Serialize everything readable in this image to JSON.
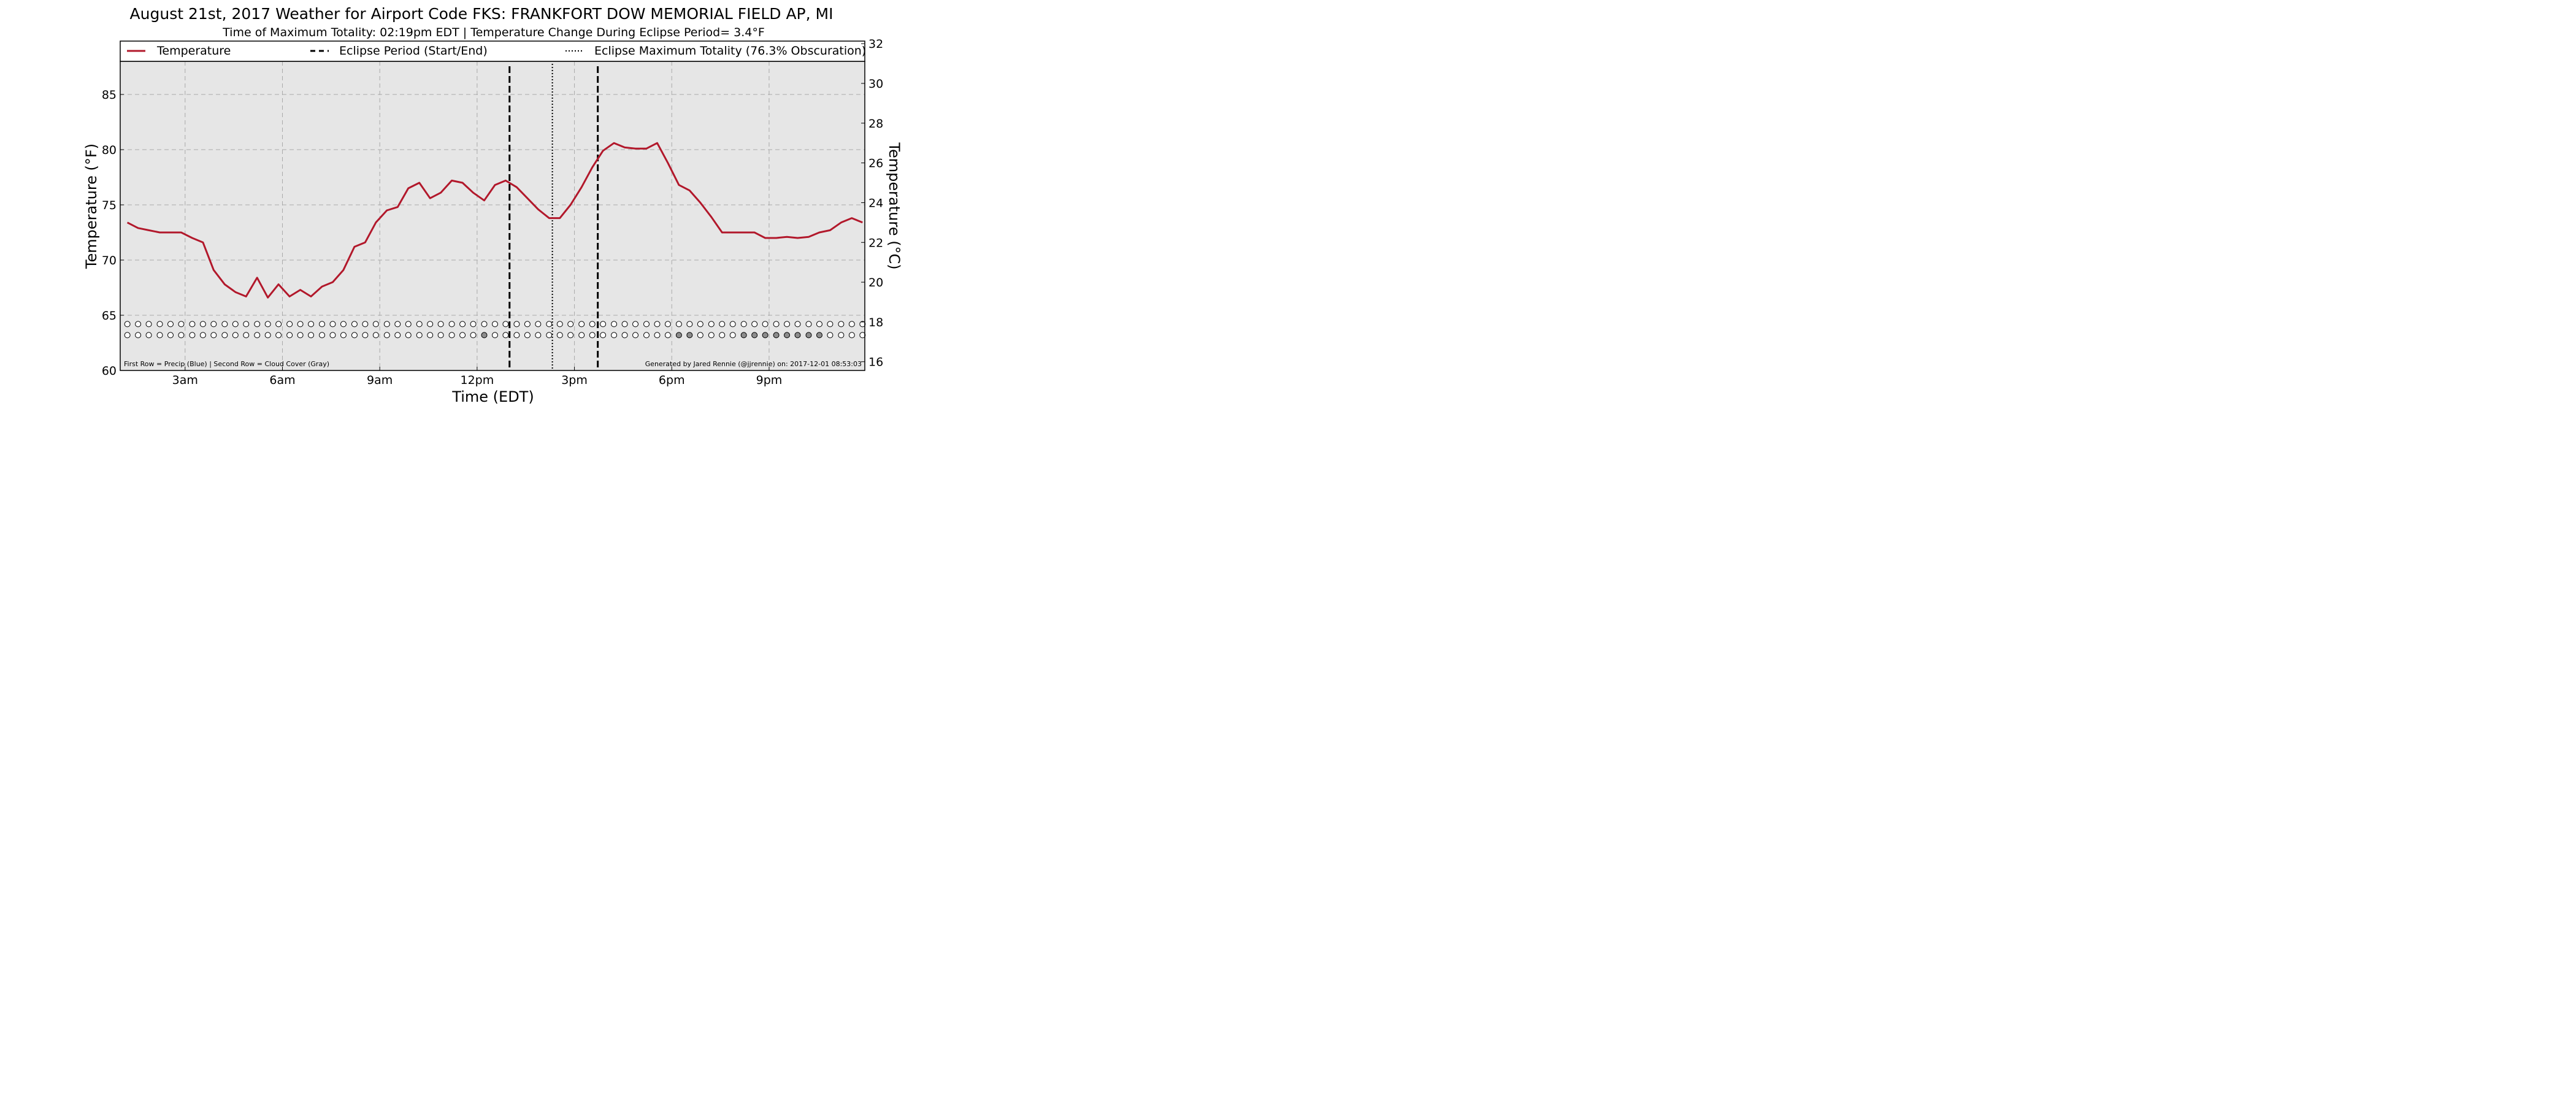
{
  "chart_data": {
    "type": "line",
    "title": "August 21st, 2017 Weather for Airport Code FKS: FRANKFORT DOW MEMORIAL FIELD AP, MI",
    "subtitle": "Time of Maximum Totality: 02:19pm EDT | Temperature Change During Eclipse Period= 3.4°F",
    "xlabel": "Time (EDT)",
    "ylabel": "Temperature (°F)",
    "ylabel_right": "Temperature (°C)",
    "ylim": [
      60,
      88
    ],
    "ylim_right": [
      15.56,
      31.11
    ],
    "xlim": [
      1.0,
      23.95
    ],
    "y_ticks": [
      "60",
      "65",
      "70",
      "75",
      "80",
      "85"
    ],
    "y_right_ticks": [
      "16",
      "18",
      "20",
      "22",
      "24",
      "26",
      "28",
      "30",
      "32"
    ],
    "x_ticks": [
      {
        "x": 3,
        "label": "3am"
      },
      {
        "x": 6,
        "label": "6am"
      },
      {
        "x": 9,
        "label": "9am"
      },
      {
        "x": 12,
        "label": "12pm"
      },
      {
        "x": 15,
        "label": "3pm"
      },
      {
        "x": 18,
        "label": "6pm"
      },
      {
        "x": 21,
        "label": "9pm"
      }
    ],
    "grid": true,
    "legend_position": "top",
    "legend": {
      "temperature": "Temperature",
      "eclipse_period": "Eclipse Period (Start/End)",
      "eclipse_max": "Eclipse Maximum Totality (76.3% Obscuration)"
    },
    "series": [
      {
        "name": "Temperature",
        "color": "#b2182b",
        "x": [
          1.22,
          1.55,
          1.88,
          2.22,
          2.55,
          2.88,
          3.22,
          3.55,
          3.88,
          4.22,
          4.55,
          4.88,
          5.22,
          5.55,
          5.88,
          6.22,
          6.55,
          6.88,
          7.22,
          7.55,
          7.88,
          8.22,
          8.55,
          8.88,
          9.22,
          9.55,
          9.88,
          10.22,
          10.55,
          10.88,
          11.22,
          11.55,
          11.88,
          12.22,
          12.55,
          12.88,
          13.22,
          13.55,
          13.88,
          14.22,
          14.55,
          14.88,
          15.22,
          15.55,
          15.88,
          16.22,
          16.55,
          16.88,
          17.22,
          17.55,
          17.88,
          18.22,
          18.55,
          18.88,
          19.22,
          19.55,
          19.88,
          20.22,
          20.55,
          20.88,
          21.22,
          21.55,
          21.88,
          22.22,
          22.55,
          22.88,
          23.22,
          23.55,
          23.88
        ],
        "values": [
          73.4,
          72.9,
          72.7,
          72.5,
          72.5,
          72.5,
          72.0,
          71.6,
          69.1,
          67.8,
          67.1,
          66.7,
          68.4,
          66.6,
          67.8,
          66.7,
          67.3,
          66.7,
          67.6,
          68.0,
          69.1,
          71.2,
          71.6,
          73.4,
          74.5,
          74.8,
          76.5,
          77.0,
          75.6,
          76.1,
          77.2,
          77.0,
          76.1,
          75.4,
          76.8,
          77.2,
          76.6,
          75.6,
          74.6,
          73.8,
          73.8,
          75.0,
          76.6,
          78.4,
          79.9,
          80.6,
          80.2,
          80.1,
          80.1,
          80.6,
          78.8,
          76.8,
          76.3,
          75.2,
          73.9,
          72.5,
          72.5,
          72.5,
          72.5,
          72.0,
          72.0,
          72.1,
          72.0,
          72.1,
          72.5,
          72.7,
          73.4,
          73.8,
          73.4
        ]
      }
    ],
    "eclipse_start": 13.0,
    "eclipse_end": 15.72,
    "eclipse_max_time": 14.32,
    "marker_rows": {
      "x": [
        1.22,
        1.55,
        1.88,
        2.22,
        2.55,
        2.88,
        3.22,
        3.55,
        3.88,
        4.22,
        4.55,
        4.88,
        5.22,
        5.55,
        5.88,
        6.22,
        6.55,
        6.88,
        7.22,
        7.55,
        7.88,
        8.22,
        8.55,
        8.88,
        9.22,
        9.55,
        9.88,
        10.22,
        10.55,
        10.88,
        11.22,
        11.55,
        11.88,
        12.22,
        12.55,
        12.88,
        13.22,
        13.55,
        13.88,
        14.22,
        14.55,
        14.88,
        15.22,
        15.55,
        15.88,
        16.22,
        16.55,
        16.88,
        17.22,
        17.55,
        17.88,
        18.22,
        18.55,
        18.88,
        19.22,
        19.55,
        19.88,
        20.22,
        20.55,
        20.88,
        21.22,
        21.55,
        21.88,
        22.22,
        22.55,
        22.88,
        23.22,
        23.55,
        23.88
      ],
      "precip_y": 64.2,
      "cloud_y": 63.2,
      "precip_flags": [
        0,
        0,
        0,
        0,
        0,
        0,
        0,
        0,
        0,
        0,
        0,
        0,
        0,
        0,
        0,
        0,
        0,
        0,
        0,
        0,
        0,
        0,
        0,
        0,
        0,
        0,
        0,
        0,
        0,
        0,
        0,
        0,
        0,
        0,
        0,
        0,
        0,
        0,
        0,
        0,
        0,
        0,
        0,
        0,
        0,
        0,
        0,
        0,
        0,
        0,
        0,
        0,
        0,
        0,
        0,
        0,
        0,
        0,
        0,
        0,
        0,
        0,
        0,
        0,
        0,
        0,
        0,
        0,
        0
      ],
      "cloud_flags": [
        0,
        0,
        0,
        0,
        0,
        0,
        0,
        0,
        0,
        0,
        0,
        0,
        0,
        0,
        0,
        0,
        0,
        0,
        0,
        0,
        0,
        0,
        0,
        0,
        0,
        0,
        0,
        0,
        0,
        0,
        0,
        0,
        0,
        1,
        0,
        0,
        0,
        0,
        0,
        0,
        0,
        0,
        0,
        0,
        0,
        0,
        0,
        0,
        0,
        0,
        0,
        1,
        1,
        0,
        0,
        0,
        0,
        1,
        1,
        1,
        1,
        1,
        1,
        1,
        1,
        0,
        0,
        0,
        0
      ]
    },
    "footnote_left": "First Row = Precip (Blue) | Second Row = Cloud Cover (Gray)",
    "footnote_right": "Generated by Jared Rennie (@jjrennie) on: 2017-12-01 08:53:03",
    "colors": {
      "background": "#e6e6e6",
      "grid": "#a9a9a9",
      "eclipse_lines": "#000000",
      "cloud_marker_fill": "#8c8c8c",
      "empty_marker_fill": "#ffffff"
    }
  }
}
